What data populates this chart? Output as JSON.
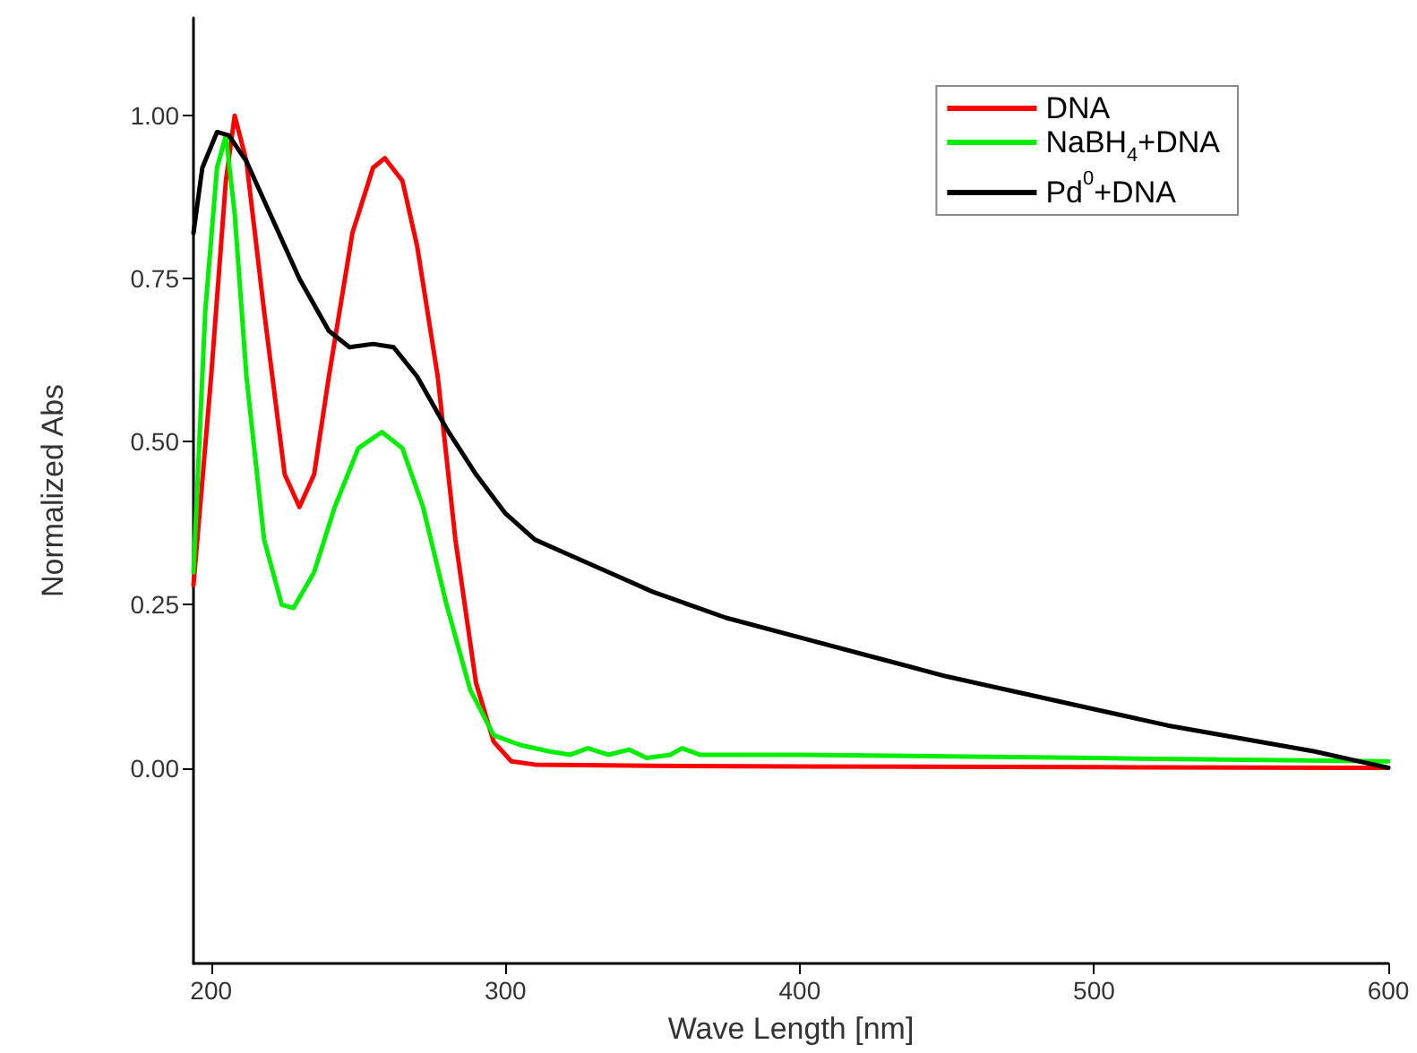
{
  "chart_data": {
    "type": "line",
    "xlabel": "Wave Length [nm]",
    "ylabel": "Normalized Abs",
    "xlim": [
      194,
      600
    ],
    "ylim": [
      -0.3,
      1.15
    ],
    "xticks": [
      200,
      300,
      400,
      500,
      600
    ],
    "yticks": [
      {
        "value": 0,
        "label": "0.00"
      },
      {
        "value": 0.25,
        "label": "0.25"
      },
      {
        "value": 0.5,
        "label": "0.50"
      },
      {
        "value": 0.75,
        "label": "0.75"
      },
      {
        "value": 1,
        "label": "1.00"
      }
    ],
    "grid": false,
    "legend": "top right",
    "marker": "none",
    "line_style": "solid",
    "series": [
      {
        "name": "DNA",
        "color": "#ff0000",
        "x": [
          194,
          200,
          205,
          208,
          212,
          218,
          225,
          230,
          235,
          240,
          248,
          255,
          259,
          265,
          270,
          277,
          283,
          290,
          296,
          302,
          310,
          350,
          400,
          500,
          600
        ],
        "values": [
          0.28,
          0.6,
          0.9,
          1.0,
          0.93,
          0.7,
          0.45,
          0.4,
          0.45,
          0.6,
          0.82,
          0.92,
          0.935,
          0.9,
          0.8,
          0.6,
          0.35,
          0.13,
          0.04,
          0.01,
          0.005,
          0.003,
          0.002,
          0.001,
          0
        ]
      },
      {
        "name": "NaBH$_{4}$+DNA",
        "color": "#00ee00",
        "x": [
          194,
          198,
          202,
          205,
          208,
          212,
          218,
          224,
          228,
          235,
          242,
          250,
          258,
          265,
          272,
          280,
          288,
          296,
          305,
          315,
          322,
          328,
          335,
          342,
          348,
          356,
          360,
          366,
          400,
          500,
          600
        ],
        "values": [
          0.3,
          0.7,
          0.92,
          0.97,
          0.85,
          0.6,
          0.35,
          0.25,
          0.245,
          0.3,
          0.4,
          0.49,
          0.515,
          0.49,
          0.4,
          0.25,
          0.12,
          0.05,
          0.035,
          0.025,
          0.02,
          0.03,
          0.02,
          0.028,
          0.015,
          0.02,
          0.03,
          0.02,
          0.02,
          0.015,
          0.01
        ]
      },
      {
        "name": "Pd$^{0}$+DNA",
        "color": "#000000",
        "x": [
          194,
          197,
          202,
          206,
          212,
          220,
          230,
          240,
          247,
          255,
          262,
          270,
          280,
          290,
          300,
          310,
          320,
          330,
          340,
          350,
          375,
          400,
          425,
          450,
          475,
          500,
          525,
          550,
          575,
          600
        ],
        "values": [
          0.82,
          0.92,
          0.975,
          0.97,
          0.93,
          0.85,
          0.75,
          0.67,
          0.645,
          0.65,
          0.645,
          0.6,
          0.52,
          0.45,
          0.39,
          0.35,
          0.33,
          0.31,
          0.29,
          0.27,
          0.23,
          0.2,
          0.17,
          0.14,
          0.115,
          0.09,
          0.065,
          0.045,
          0.025,
          0
        ]
      }
    ]
  }
}
